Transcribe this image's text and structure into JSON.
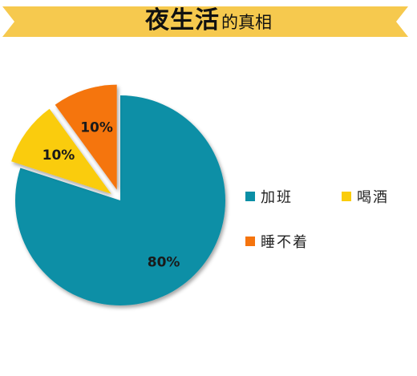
{
  "header": {
    "title_main": "夜生活",
    "title_sub": "的真相",
    "banner_color": "#F6C94E"
  },
  "chart_data": {
    "type": "pie",
    "title": "夜生活的真相",
    "slices": [
      {
        "label": "加班",
        "value": 80,
        "display": "80%",
        "color": "#0A8FA6",
        "exploded": false
      },
      {
        "label": "喝酒",
        "value": 10,
        "display": "10%",
        "color": "#FACC0A",
        "exploded": true
      },
      {
        "label": "睡不着",
        "value": 10,
        "display": "10%",
        "color": "#F5740E",
        "exploded": true
      }
    ],
    "legend_position": "right"
  }
}
